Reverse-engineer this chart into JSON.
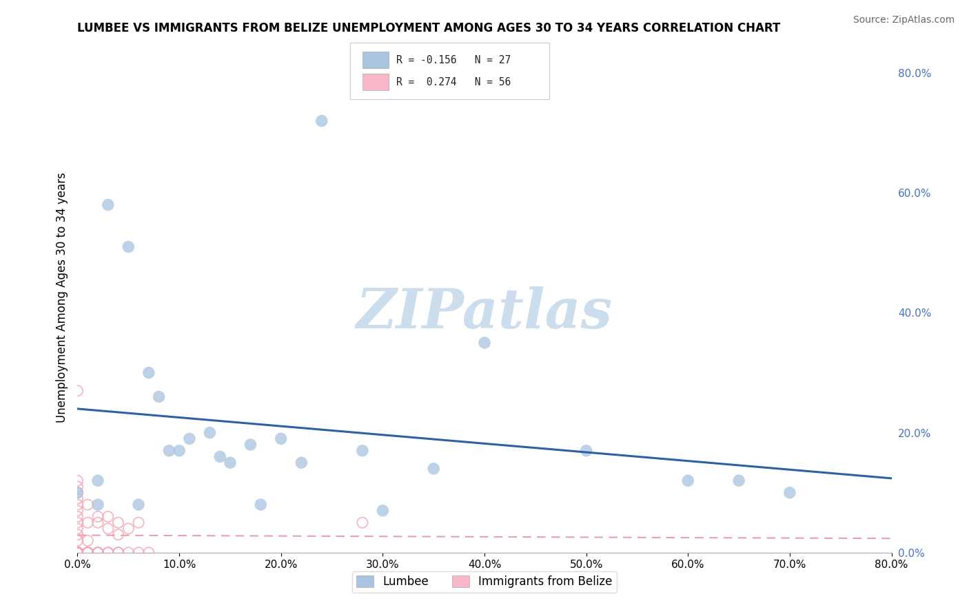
{
  "title": "LUMBEE VS IMMIGRANTS FROM BELIZE UNEMPLOYMENT AMONG AGES 30 TO 34 YEARS CORRELATION CHART",
  "source": "Source: ZipAtlas.com",
  "ylabel": "Unemployment Among Ages 30 to 34 years",
  "legend_label1": "Lumbee",
  "legend_label2": "Immigrants from Belize",
  "legend_R1": "R = -0.156",
  "legend_N1": "N = 27",
  "legend_R2": "R =  0.274",
  "legend_N2": "N = 56",
  "lumbee_x": [
    0.0,
    0.02,
    0.03,
    0.05,
    0.06,
    0.07,
    0.08,
    0.09,
    0.1,
    0.11,
    0.13,
    0.14,
    0.15,
    0.17,
    0.18,
    0.2,
    0.22,
    0.24,
    0.28,
    0.3,
    0.35,
    0.4,
    0.5,
    0.6,
    0.65,
    0.7,
    0.02
  ],
  "lumbee_y": [
    0.1,
    0.08,
    0.58,
    0.51,
    0.08,
    0.3,
    0.26,
    0.17,
    0.17,
    0.19,
    0.2,
    0.16,
    0.15,
    0.18,
    0.08,
    0.19,
    0.15,
    0.72,
    0.17,
    0.07,
    0.14,
    0.35,
    0.17,
    0.12,
    0.12,
    0.1,
    0.12
  ],
  "belize_x": [
    0.0,
    0.0,
    0.0,
    0.0,
    0.0,
    0.0,
    0.0,
    0.0,
    0.0,
    0.0,
    0.0,
    0.0,
    0.0,
    0.0,
    0.0,
    0.0,
    0.0,
    0.0,
    0.0,
    0.0,
    0.0,
    0.0,
    0.0,
    0.0,
    0.0,
    0.0,
    0.0,
    0.0,
    0.0,
    0.0,
    0.01,
    0.01,
    0.01,
    0.01,
    0.01,
    0.01,
    0.01,
    0.02,
    0.02,
    0.02,
    0.02,
    0.02,
    0.03,
    0.03,
    0.03,
    0.03,
    0.04,
    0.04,
    0.04,
    0.04,
    0.05,
    0.05,
    0.06,
    0.06,
    0.07,
    0.28
  ],
  "belize_y": [
    0.0,
    0.0,
    0.0,
    0.0,
    0.0,
    0.0,
    0.0,
    0.0,
    0.0,
    0.0,
    0.02,
    0.03,
    0.04,
    0.05,
    0.06,
    0.07,
    0.08,
    0.09,
    0.1,
    0.11,
    0.12,
    0.27,
    0.0,
    0.0,
    0.0,
    0.0,
    0.0,
    0.0,
    0.0,
    0.0,
    0.0,
    0.0,
    0.02,
    0.05,
    0.08,
    0.0,
    0.0,
    0.0,
    0.0,
    0.05,
    0.06,
    0.0,
    0.0,
    0.04,
    0.06,
    0.0,
    0.0,
    0.03,
    0.05,
    0.0,
    0.0,
    0.04,
    0.0,
    0.05,
    0.0,
    0.05
  ],
  "lumbee_color": "#a8c4e0",
  "belize_edge_color": "#f4a0b0",
  "lumbee_line_color": "#2e5fa3",
  "belize_line_color": "#e8a0b0",
  "watermark_color": "#ccdded",
  "xmin": 0.0,
  "xmax": 0.8,
  "ymin": 0.0,
  "ymax": 0.85,
  "grid_color": "#dddddd",
  "ytick_vals": [
    0.0,
    0.2,
    0.4,
    0.6,
    0.8
  ],
  "xtick_vals": [
    0.0,
    0.1,
    0.2,
    0.3,
    0.4,
    0.5,
    0.6,
    0.7,
    0.8
  ]
}
